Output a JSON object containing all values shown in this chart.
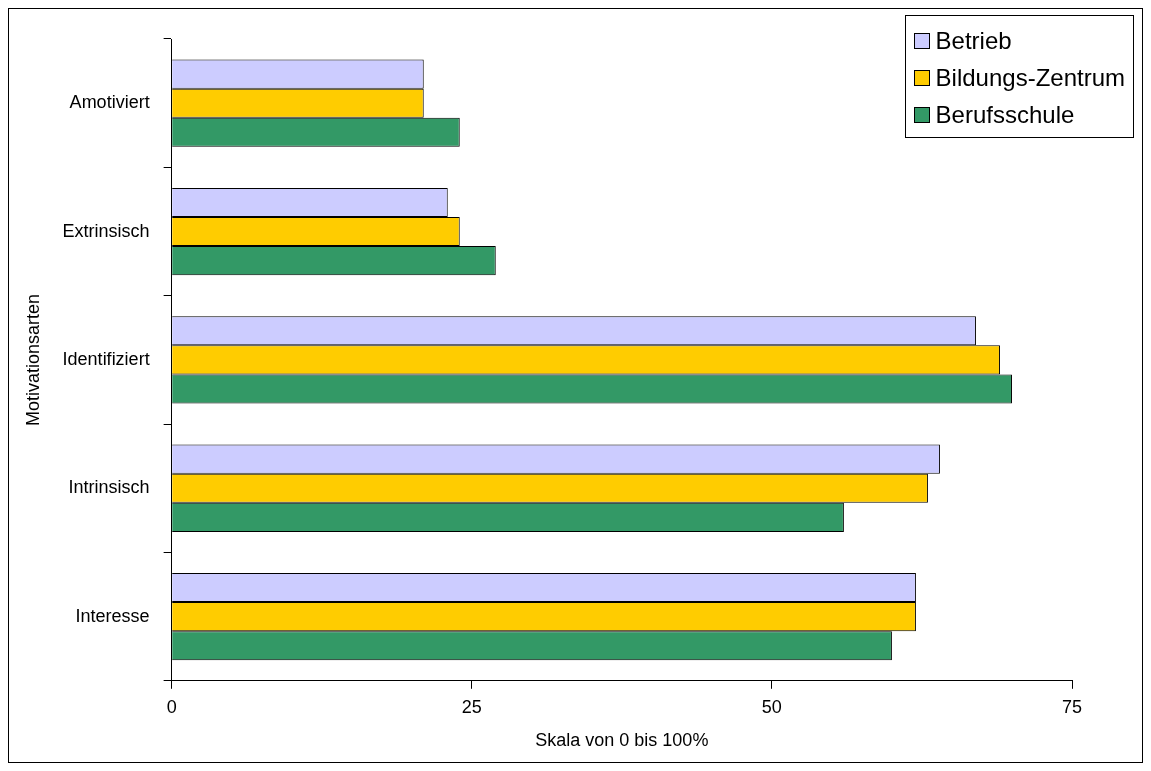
{
  "chart_data": {
    "type": "bar",
    "orientation": "horizontal",
    "xlabel": "Skala von 0 bis 100%",
    "ylabel": "Motivationsarten",
    "categories": [
      "Amotiviert",
      "Extrinsisch",
      "Identifiziert",
      "Intrinsisch",
      "Interesse"
    ],
    "series": [
      {
        "name": "Betrieb",
        "color": "#ccccff",
        "values": [
          21,
          23,
          67,
          64,
          62
        ]
      },
      {
        "name": "Bildungs-Zentrum",
        "color": "#ffcc00",
        "values": [
          21,
          24,
          69,
          63,
          62
        ]
      },
      {
        "name": "Berufsschule",
        "color": "#339966",
        "values": [
          24,
          27,
          70,
          56,
          60
        ]
      }
    ],
    "xlim": [
      0,
      75
    ],
    "xticks": [
      0,
      25,
      50,
      75
    ],
    "grid": false,
    "legend": "top right"
  }
}
